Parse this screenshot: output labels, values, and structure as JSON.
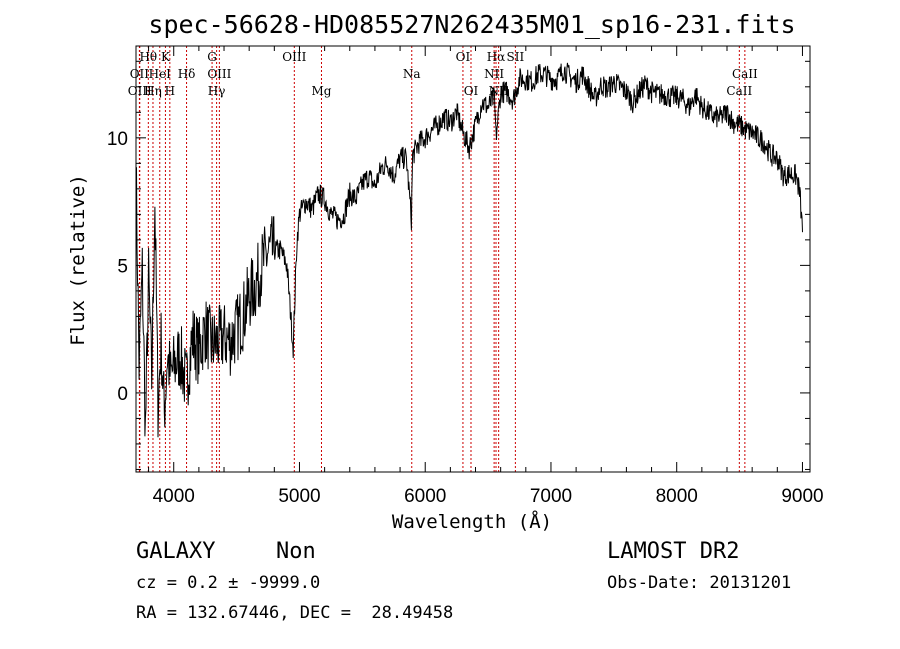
{
  "chart_data": {
    "type": "line",
    "title": "spec-56628-HD085527N262435M01_sp16-231.fits",
    "xlabel": "Wavelength (Å)",
    "ylabel": "Flux (relative)",
    "xlim": [
      3700,
      9060
    ],
    "ylim": [
      -3.1,
      13.6
    ],
    "xticks": [
      4000,
      5000,
      6000,
      7000,
      8000,
      9000
    ],
    "yticks": [
      0,
      5,
      10
    ],
    "grid": false,
    "series": [
      {
        "x": [
          3700,
          3725,
          3750,
          3775,
          3800,
          3825,
          3850,
          3875,
          3900,
          3925,
          3950,
          3975,
          4000,
          4050,
          4100,
          4150,
          4200,
          4250,
          4300,
          4350,
          4400,
          4450,
          4500,
          4550,
          4600,
          4650,
          4700,
          4750,
          4800,
          4850,
          4900,
          4950,
          4980,
          5000,
          5050,
          5100,
          5150,
          5200,
          5250,
          5300,
          5350,
          5400,
          5450,
          5500,
          5550,
          5600,
          5650,
          5700,
          5750,
          5800,
          5850,
          5890,
          5900,
          5950,
          6000,
          6050,
          6100,
          6150,
          6200,
          6250,
          6300,
          6350,
          6400,
          6450,
          6500,
          6550,
          6563,
          6600,
          6650,
          6700,
          6750,
          6800,
          6850,
          6900,
          6950,
          7000,
          7050,
          7100,
          7150,
          7200,
          7250,
          7300,
          7350,
          7400,
          7450,
          7500,
          7550,
          7600,
          7650,
          7700,
          7750,
          7800,
          7850,
          7900,
          7950,
          8000,
          8050,
          8100,
          8150,
          8200,
          8250,
          8300,
          8350,
          8400,
          8450,
          8500,
          8550,
          8600,
          8650,
          8700,
          8750,
          8800,
          8850,
          8900,
          8950,
          8980,
          9000
        ],
        "y": [
          9.0,
          1.0,
          4.8,
          -1.5,
          4.5,
          0.5,
          7.5,
          -0.5,
          2.0,
          -0.8,
          1.5,
          0.6,
          1.0,
          1.5,
          0.3,
          2.2,
          1.6,
          2.5,
          1.9,
          2.0,
          2.2,
          2.0,
          2.5,
          3.0,
          3.8,
          4.2,
          5.0,
          5.5,
          5.6,
          5.6,
          5.0,
          1.8,
          6.0,
          7.0,
          7.5,
          7.2,
          7.8,
          7.6,
          7.0,
          6.8,
          6.9,
          7.8,
          7.6,
          8.2,
          8.5,
          8.1,
          8.8,
          9.0,
          8.5,
          9.2,
          9.2,
          6.8,
          9.3,
          9.8,
          10.0,
          10.3,
          10.5,
          10.8,
          10.6,
          11.0,
          10.2,
          9.6,
          10.5,
          11.4,
          11.2,
          11.6,
          10.0,
          11.8,
          11.8,
          11.5,
          12.3,
          12.3,
          12.2,
          12.5,
          12.5,
          12.3,
          12.3,
          12.7,
          12.4,
          12.2,
          12.5,
          12.0,
          11.5,
          12.1,
          11.9,
          12.2,
          12.0,
          11.8,
          11.4,
          11.8,
          12.1,
          11.8,
          11.7,
          11.7,
          11.6,
          11.6,
          11.5,
          11.2,
          11.7,
          11.2,
          11.0,
          10.8,
          10.8,
          11.0,
          10.6,
          10.5,
          10.3,
          10.2,
          10.0,
          9.8,
          9.3,
          9.2,
          8.5,
          8.6,
          8.5,
          7.8,
          6.3
        ]
      }
    ],
    "lines": [
      {
        "label": "Hθ",
        "x": 3798,
        "row": 1
      },
      {
        "label": "OII",
        "x": 3727,
        "row": 2
      },
      {
        "label": "OIII",
        "x": 3730,
        "row": 3
      },
      {
        "label": "K",
        "x": 3934,
        "row": 1
      },
      {
        "label": "HeI",
        "x": 3889,
        "row": 2
      },
      {
        "label": "Hη",
        "x": 3835,
        "row": 3
      },
      {
        "label": "H",
        "x": 3969,
        "row": 3
      },
      {
        "label": "Hδ",
        "x": 4102,
        "row": 2
      },
      {
        "label": "G",
        "x": 4305,
        "row": 1
      },
      {
        "label": "OIII",
        "x": 4363,
        "row": 2
      },
      {
        "label": "Hγ",
        "x": 4341,
        "row": 3
      },
      {
        "label": "OIII",
        "x": 4959,
        "row": 1
      },
      {
        "label": "Mg",
        "x": 5175,
        "row": 3
      },
      {
        "label": "Na",
        "x": 5893,
        "row": 2
      },
      {
        "label": "OI",
        "x": 6300,
        "row": 1
      },
      {
        "label": "OI",
        "x": 6364,
        "row": 3
      },
      {
        "label": "Hα",
        "x": 6563,
        "row": 1
      },
      {
        "label": "NII",
        "x": 6548,
        "row": 2
      },
      {
        "label": "NII",
        "x": 6584,
        "row": 3
      },
      {
        "label": "SII",
        "x": 6717,
        "row": 1
      },
      {
        "label": "CaII",
        "x": 8542,
        "row": 2
      },
      {
        "label": "CaII",
        "x": 8498,
        "row": 3
      }
    ]
  },
  "info": {
    "class": "GALAXY",
    "subclass": "Non",
    "survey": "LAMOST DR2",
    "cz": "cz = 0.2 ± -9999.0",
    "obs_date": "Obs-Date: 20131201",
    "coords": "RA = 132.67446, DEC =  28.49458"
  }
}
